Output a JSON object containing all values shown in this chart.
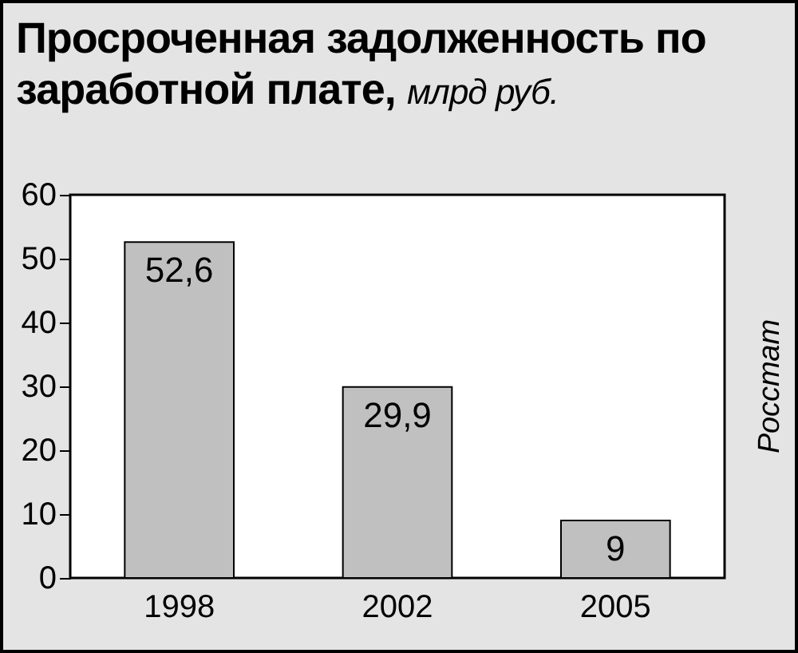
{
  "chart_data": {
    "type": "bar",
    "title": "Просроченная задолженность по заработной плате,",
    "subtitle": "млрд руб.",
    "categories": [
      "1998",
      "2002",
      "2005"
    ],
    "values": [
      52.6,
      29.9,
      9
    ],
    "value_labels": [
      "52,6",
      "29,9",
      "9"
    ],
    "color": "#c0c0c0",
    "ylim": [
      0,
      60
    ],
    "yticks": [
      0,
      10,
      20,
      30,
      40,
      50,
      60
    ],
    "grid": false,
    "annotations": [
      "Росстат"
    ]
  }
}
